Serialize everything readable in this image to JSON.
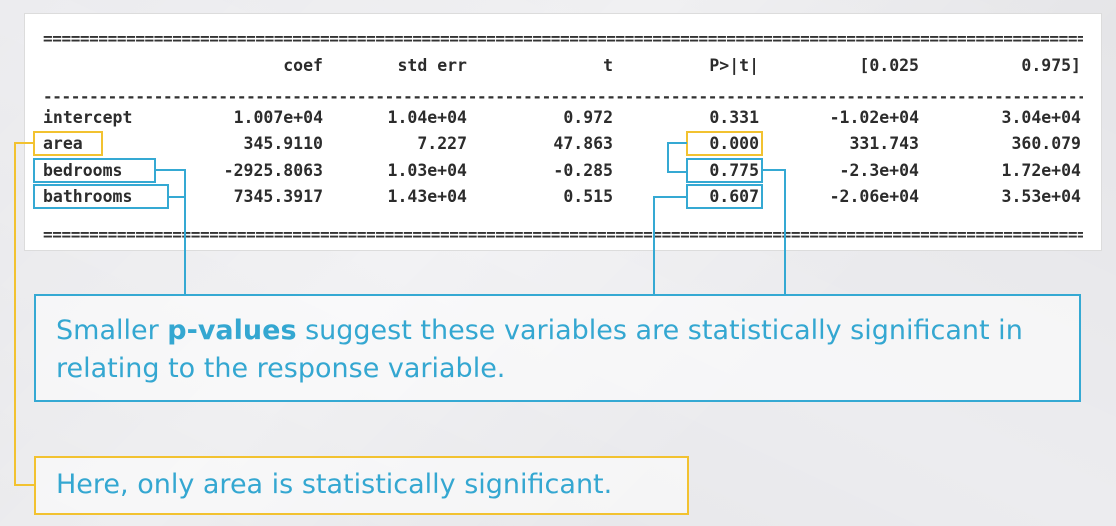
{
  "rules": {
    "double": "==================================================================================================================",
    "single": "------------------------------------------------------------------------------------------------------------------"
  },
  "table": {
    "headers": [
      "coef",
      "std err",
      "t",
      "P>|t|",
      "[0.025",
      "0.975]"
    ],
    "rows": [
      {
        "name": "intercept",
        "values": [
          "1.007e+04",
          "1.04e+04",
          "0.972",
          "0.331",
          "-1.02e+04",
          "3.04e+04"
        ]
      },
      {
        "name": "area",
        "values": [
          "345.9110",
          "7.227",
          "47.863",
          "0.000",
          "331.743",
          "360.079"
        ]
      },
      {
        "name": "bedrooms",
        "values": [
          "-2925.8063",
          "1.03e+04",
          "-0.285",
          "0.775",
          "-2.3e+04",
          "1.72e+04"
        ]
      },
      {
        "name": "bathrooms",
        "values": [
          "7345.3917",
          "1.43e+04",
          "0.515",
          "0.607",
          "-2.06e+04",
          "3.53e+04"
        ]
      }
    ]
  },
  "callouts": {
    "pvalues": {
      "before": "Smaller ",
      "bold": "p-values",
      "after": " suggest these variables are statistically significant in relating to the response variable."
    },
    "area": "Here, only area is statistically significant."
  },
  "colors": {
    "highlight_significant": "#f2c230",
    "highlight_other": "#35a9d3",
    "callout_text": "#34a7d1"
  }
}
